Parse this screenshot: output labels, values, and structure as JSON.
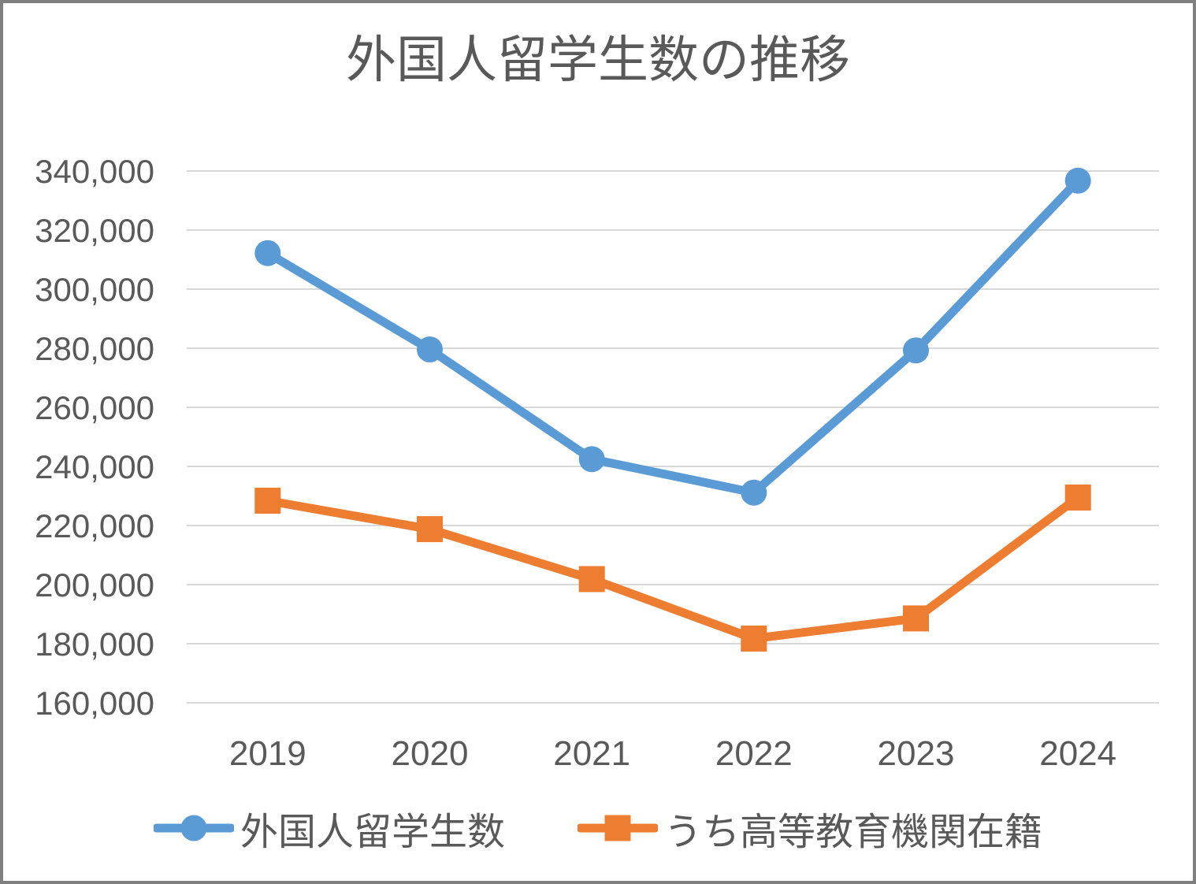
{
  "chart_data": {
    "type": "line",
    "title": "外国人留学生数の推移",
    "categories": [
      "2019",
      "2020",
      "2021",
      "2022",
      "2023",
      "2024"
    ],
    "series": [
      {
        "name": "外国人留学生数",
        "color": "#5B9BD5",
        "marker": "circle",
        "values": [
          312214,
          279597,
          242444,
          231146,
          279274,
          336708
        ]
      },
      {
        "name": "うち高等教育機関在籍",
        "color": "#ED7D31",
        "marker": "square",
        "values": [
          228403,
          218783,
          201877,
          181741,
          188555,
          229467
        ]
      }
    ],
    "ylim": [
      160000,
      340000
    ],
    "y_step": 20000,
    "y_tick_labels": [
      "160,000",
      "180,000",
      "200,000",
      "220,000",
      "240,000",
      "260,000",
      "280,000",
      "300,000",
      "320,000",
      "340,000"
    ],
    "xlabel": "",
    "ylabel": "",
    "grid": true,
    "gridlines": "horizontal-only",
    "legend_position": "bottom"
  },
  "colors": {
    "title_text": "#595959",
    "axis_text": "#595959",
    "gridline": "#D9D9D9",
    "frame_border": "#7F7F7F",
    "background": "#FFFFFF",
    "series_1": "#5B9BD5",
    "series_2": "#ED7D31"
  }
}
